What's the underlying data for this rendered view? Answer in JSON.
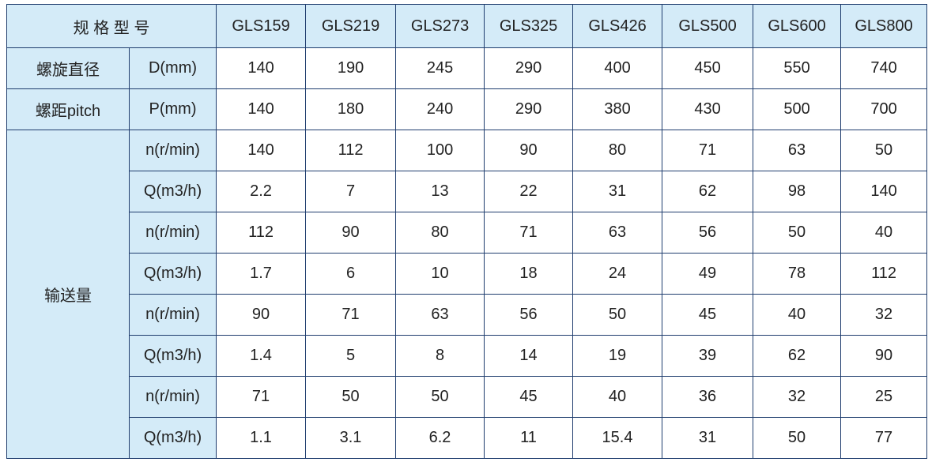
{
  "table": {
    "header": {
      "title": "规 格 型 号",
      "models": [
        "GLS159",
        "GLS219",
        "GLS273",
        "GLS325",
        "GLS426",
        "GLS500",
        "GLS600",
        "GLS800"
      ]
    },
    "rows": [
      {
        "label": "螺旋直径",
        "unit": "D(mm)",
        "values": [
          140,
          190,
          245,
          290,
          400,
          450,
          550,
          740
        ]
      },
      {
        "label": "螺距pitch",
        "unit": "P(mm)",
        "values": [
          140,
          180,
          240,
          290,
          380,
          430,
          500,
          700
        ]
      }
    ],
    "group": {
      "label": "输送量",
      "rows": [
        {
          "unit": "n(r/min)",
          "values": [
            140,
            112,
            100,
            90,
            80,
            71,
            63,
            50
          ]
        },
        {
          "unit": "Q(m3/h)",
          "values": [
            2.2,
            7,
            13,
            22,
            31,
            62,
            98,
            140
          ]
        },
        {
          "unit": "n(r/min)",
          "values": [
            112,
            90,
            80,
            71,
            63,
            56,
            50,
            40
          ]
        },
        {
          "unit": "Q(m3/h)",
          "values": [
            1.7,
            6,
            10,
            18,
            24,
            49,
            78,
            112
          ]
        },
        {
          "unit": "n(r/min)",
          "values": [
            90,
            71,
            63,
            56,
            50,
            45,
            40,
            32
          ]
        },
        {
          "unit": "Q(m3/h)",
          "values": [
            1.4,
            5,
            8,
            14,
            19,
            39,
            62,
            90
          ]
        },
        {
          "unit": "n(r/min)",
          "values": [
            71,
            50,
            50,
            45,
            40,
            36,
            32,
            25
          ]
        },
        {
          "unit": "Q(m3/h)",
          "values": [
            1.1,
            3.1,
            6.2,
            11,
            15.4,
            31,
            50,
            77
          ]
        }
      ]
    }
  }
}
